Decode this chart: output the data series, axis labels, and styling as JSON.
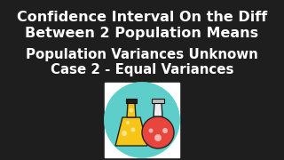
{
  "background_color": "#1e1e1e",
  "title_line1": "Confidence Interval On the Diff",
  "title_line2": "Between 2 Population Means",
  "subtitle_line1": "Population Variances Unknown",
  "subtitle_line2": "Case 2 - Equal Variances",
  "text_color": "#ffffff",
  "title_fontsize": 11.5,
  "subtitle_fontsize": 10.8,
  "flask_circle_color": "#5ececa",
  "flask1_color": "#f5c518",
  "flask2_color": "#e8453c"
}
